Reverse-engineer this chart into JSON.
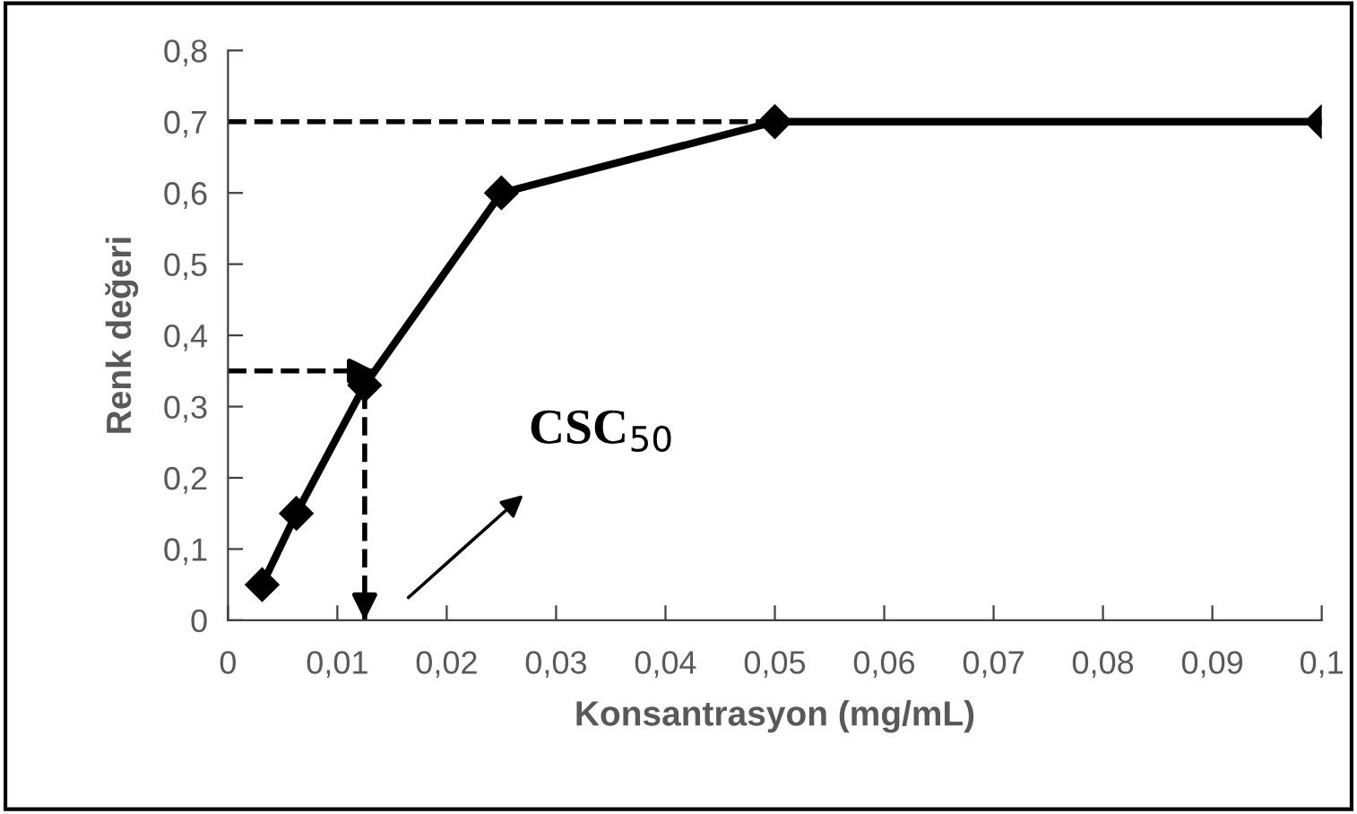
{
  "chart_data": {
    "type": "line",
    "xlabel": "Konsantrasyon (mg/mL)",
    "ylabel": "Renk değeri",
    "x": [
      0.003125,
      0.00625,
      0.0125,
      0.025,
      0.05,
      0.1
    ],
    "series": [
      {
        "color": "#000000",
        "values": [
          0.05,
          0.15,
          0.33,
          0.6,
          0.7,
          0.7
        ]
      }
    ],
    "marker": "diamond",
    "line_style": "solid",
    "xlim": [
      0,
      0.1
    ],
    "xticks": [
      0,
      {
        "value": 0.01,
        "label": "0,01"
      },
      {
        "value": 0.02,
        "label": "0,02"
      },
      {
        "value": 0.03,
        "label": "0,03"
      },
      {
        "value": 0.04,
        "label": "0,04"
      },
      {
        "value": 0.05,
        "label": "0,05"
      },
      {
        "value": 0.06,
        "label": "0,06"
      },
      {
        "value": 0.07,
        "label": "0,07"
      },
      {
        "value": 0.08,
        "label": "0,08"
      },
      {
        "value": 0.09,
        "label": "0,09"
      },
      {
        "value": 0.1,
        "label": "0,1"
      }
    ],
    "ylim": [
      0,
      0.8
    ],
    "yticks": [
      0,
      {
        "value": 0.1,
        "label": "0,1"
      },
      {
        "value": 0.2,
        "label": "0,2"
      },
      {
        "value": 0.3,
        "label": "0,3"
      },
      {
        "value": 0.4,
        "label": "0,4"
      },
      {
        "value": 0.5,
        "label": "0,5"
      },
      {
        "value": 0.6,
        "label": "0,6"
      },
      {
        "value": 0.7,
        "label": "0,7"
      },
      {
        "value": 0.8,
        "label": "0,8"
      }
    ],
    "ref_lines": [
      {
        "axis": "y",
        "value": 0.7,
        "color": "#000000",
        "line_style": "dashed"
      },
      {
        "axis": "y",
        "value": 0.35,
        "color": "#000000",
        "line_style": "dashed"
      },
      {
        "axis": "x",
        "value": 0.0125,
        "color": "#000000",
        "line_style": "dashed"
      }
    ],
    "annotations": [
      "CSC$_{50}$"
    ],
    "grid": false,
    "legend": false
  }
}
